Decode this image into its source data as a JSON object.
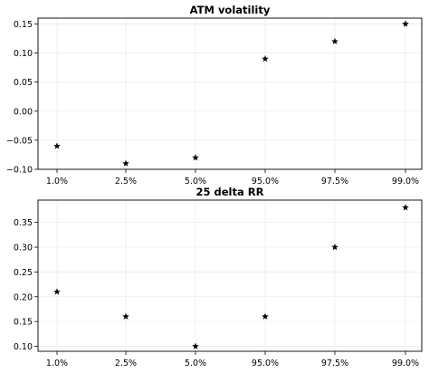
{
  "chart_data": [
    {
      "type": "scatter",
      "title": "ATM volatility",
      "marker": "star",
      "marker_color": "#000000",
      "categories": [
        "1.0%",
        "2.5%",
        "5.0%",
        "95.0%",
        "97.5%",
        "99.0%"
      ],
      "values": [
        -0.06,
        -0.09,
        -0.08,
        0.09,
        0.12,
        0.15
      ],
      "ylim": [
        -0.1,
        0.16
      ],
      "yticks": [
        -0.1,
        -0.05,
        0.0,
        0.05,
        0.1,
        0.15
      ],
      "ytick_labels": [
        "−0.10",
        "−0.05",
        "0.00",
        "0.05",
        "0.10",
        "0.15"
      ],
      "grid": true
    },
    {
      "type": "scatter",
      "title": "25 delta RR",
      "marker": "star",
      "marker_color": "#000000",
      "categories": [
        "1.0%",
        "2.5%",
        "5.0%",
        "95.0%",
        "97.5%",
        "99.0%"
      ],
      "values": [
        0.21,
        0.16,
        0.1,
        0.16,
        0.3,
        0.38
      ],
      "ylim": [
        0.09,
        0.395
      ],
      "yticks": [
        0.1,
        0.15,
        0.2,
        0.25,
        0.3,
        0.35
      ],
      "ytick_labels": [
        "0.10",
        "0.15",
        "0.20",
        "0.25",
        "0.30",
        "0.35"
      ],
      "grid": true
    }
  ]
}
